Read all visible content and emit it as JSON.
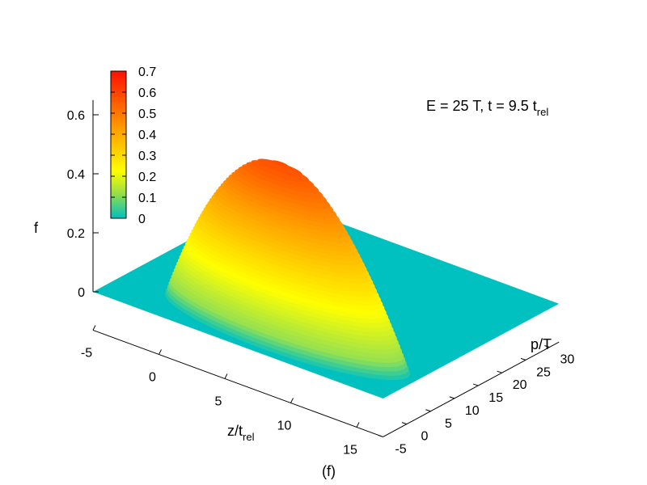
{
  "chart_data": {
    "type": "surface",
    "annotation": {
      "text": "E = 25 T, t = 9.5 t",
      "subscript": "rel"
    },
    "panel_label": "(f)",
    "x_axis": {
      "label": "z/t",
      "label_subscript": "rel",
      "range": [
        -5,
        17
      ],
      "ticks": [
        -5,
        0,
        5,
        10,
        15
      ]
    },
    "y_axis": {
      "label": "p/T",
      "range": [
        -5,
        32
      ],
      "ticks": [
        -5,
        0,
        5,
        10,
        15,
        20,
        25,
        30
      ]
    },
    "z_axis": {
      "label": "f",
      "range": [
        0,
        0.65
      ],
      "ticks": [
        "0",
        "0.2",
        "0.4",
        "0.6"
      ]
    },
    "colorbar": {
      "range": [
        0,
        0.7
      ],
      "ticks": [
        "0",
        "0.1",
        "0.2",
        "0.3",
        "0.4",
        "0.5",
        "0.6",
        "0.7"
      ],
      "colors": [
        "#00c0c0",
        "#ffff00",
        "#ffa000",
        "#ff0000"
      ]
    },
    "surface": {
      "base_color": "#00c0c0",
      "corners": [
        {
          "z": -5,
          "p": -5,
          "f": 0
        },
        {
          "z": 17,
          "p": -5,
          "f": 0
        },
        {
          "z": 17,
          "p": 32,
          "f": 0
        },
        {
          "z": -5,
          "p": 32,
          "f": 0
        }
      ],
      "peak": {
        "z": 7,
        "p": 1,
        "f": 0.58
      }
    }
  }
}
